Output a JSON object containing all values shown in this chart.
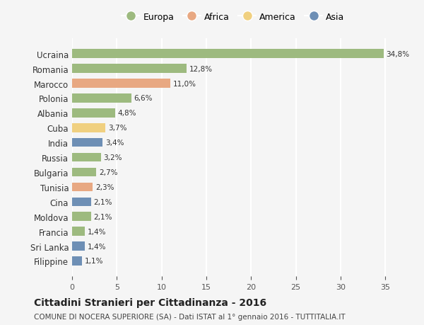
{
  "countries": [
    "Ucraina",
    "Romania",
    "Marocco",
    "Polonia",
    "Albania",
    "Cuba",
    "India",
    "Russia",
    "Bulgaria",
    "Tunisia",
    "Cina",
    "Moldova",
    "Francia",
    "Sri Lanka",
    "Filippine"
  ],
  "values": [
    34.8,
    12.8,
    11.0,
    6.6,
    4.8,
    3.7,
    3.4,
    3.2,
    2.7,
    2.3,
    2.1,
    2.1,
    1.4,
    1.4,
    1.1
  ],
  "labels": [
    "34,8%",
    "12,8%",
    "11,0%",
    "6,6%",
    "4,8%",
    "3,7%",
    "3,4%",
    "3,2%",
    "2,7%",
    "2,3%",
    "2,1%",
    "2,1%",
    "1,4%",
    "1,4%",
    "1,1%"
  ],
  "continents": [
    "Europa",
    "Europa",
    "Africa",
    "Europa",
    "Europa",
    "America",
    "Asia",
    "Europa",
    "Europa",
    "Africa",
    "Asia",
    "Europa",
    "Europa",
    "Asia",
    "Asia"
  ],
  "continent_colors": {
    "Europa": "#9dba7f",
    "Africa": "#e8a882",
    "America": "#f0d080",
    "Asia": "#6e8fb5"
  },
  "legend_order": [
    "Europa",
    "Africa",
    "America",
    "Asia"
  ],
  "title": "Cittadini Stranieri per Cittadinanza - 2016",
  "subtitle": "COMUNE DI NOCERA SUPERIORE (SA) - Dati ISTAT al 1° gennaio 2016 - TUTTITALIA.IT",
  "xlim": [
    0,
    36
  ],
  "xticks": [
    0,
    5,
    10,
    15,
    20,
    25,
    30,
    35
  ],
  "background_color": "#f5f5f5",
  "grid_color": "#ffffff"
}
